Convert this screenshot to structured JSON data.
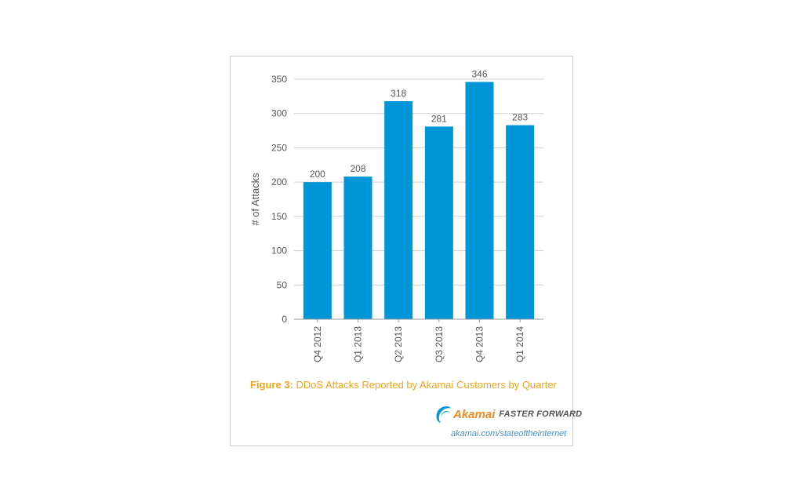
{
  "chart_data": {
    "type": "bar",
    "categories": [
      "Q4 2012",
      "Q1 2013",
      "Q2 2013",
      "Q3 2013",
      "Q4 2013",
      "Q1 2014"
    ],
    "values": [
      200,
      208,
      318,
      281,
      346,
      283
    ],
    "data_labels": [
      "200",
      "208",
      "318",
      "281",
      "346",
      "283"
    ],
    "ylabel": "# of Attacks",
    "xlabel": "",
    "ylim": [
      0,
      350
    ],
    "yticks": [
      0,
      50,
      100,
      150,
      200,
      250,
      300,
      350
    ],
    "grid": true,
    "bar_color": "#0095d6"
  },
  "caption": {
    "figure_label": "Figure 3:",
    "text": "DDoS Attacks Reported by Akamai Customers by Quarter",
    "color": "#f5a21b"
  },
  "branding": {
    "logo_name": "Akamai",
    "tagline": "FASTER FORWARD",
    "url": "akamai.com/stateoftheinternet"
  },
  "icons": {
    "logo": "akamai-wave-icon"
  }
}
